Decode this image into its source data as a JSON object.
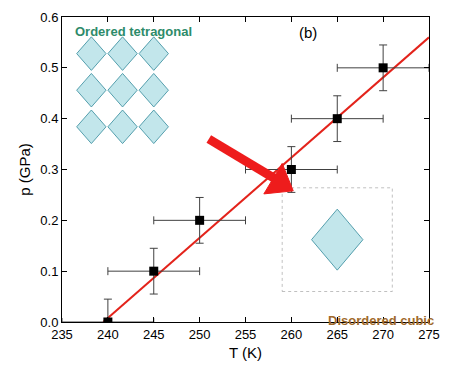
{
  "chart_data": {
    "type": "scatter",
    "xlabel": "T (K)",
    "ylabel": "p (GPa)",
    "xlim": [
      235,
      275
    ],
    "ylim": [
      0,
      0.6
    ],
    "xticks": [
      235,
      240,
      245,
      250,
      255,
      260,
      265,
      270,
      275
    ],
    "yticks": [
      {
        "value": 0,
        "label": "0.0"
      },
      {
        "value": 0.1,
        "label": "0.1"
      },
      {
        "value": 0.2,
        "label": "0.2"
      },
      {
        "value": 0.3,
        "label": "0.3"
      },
      {
        "value": 0.4,
        "label": "0.4"
      },
      {
        "value": 0.5,
        "label": "0.5"
      },
      {
        "value": 0.6,
        "label": "0.6"
      }
    ],
    "grid": false,
    "series": [
      {
        "type": "line",
        "color": "#e3231b",
        "line_style": "solid",
        "x": [
          239.5,
          275
        ],
        "values": [
          0,
          0.56
        ]
      },
      {
        "type": "scatter",
        "color": "#000000",
        "marker": "square",
        "x": [
          240,
          245,
          250,
          260,
          265,
          270
        ],
        "values": [
          0,
          0.1,
          0.2,
          0.3,
          0.4,
          0.5
        ],
        "x_error": [
          5,
          5,
          5,
          5,
          5,
          5
        ],
        "y_error": [
          0.045,
          0.045,
          0.045,
          0.045,
          0.045,
          0.045
        ]
      }
    ],
    "annotations": [
      {
        "text": "Ordered tetragonal",
        "color": "#2e8b6a"
      },
      {
        "text": "(b)",
        "color": "#000000"
      },
      {
        "text": "Disordered cubic",
        "color": "#a06a2c"
      }
    ]
  }
}
